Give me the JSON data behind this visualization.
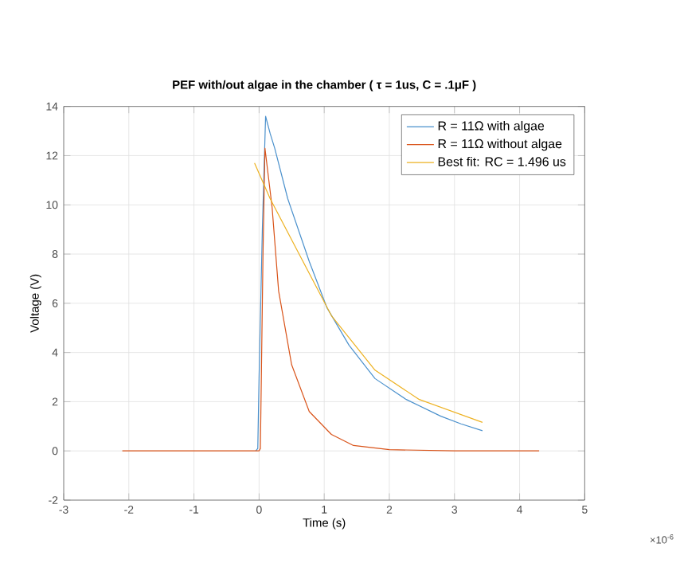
{
  "chart_data": {
    "type": "line",
    "title": "PEF with/out algae in the chamber ( τ = 1us, C = .1μF )",
    "xlabel": "Time (s)",
    "ylabel": "Voltage (V)",
    "annotations": [
      "×10$^{-6}$"
    ],
    "xlim": [
      -3,
      5
    ],
    "xticks": [
      -3,
      -2,
      -1,
      0,
      1,
      2,
      3,
      4,
      5
    ],
    "ylim": [
      -2,
      14
    ],
    "yticks": [
      -2,
      0,
      2,
      4,
      6,
      8,
      10,
      12,
      14
    ],
    "grid": true,
    "legend": "top right",
    "marker": "none",
    "line_style": "solid",
    "series": [
      {
        "name": "R = 11Ω with algae",
        "color": "#4a90cc",
        "x": [
          -0.05,
          -0.02,
          0.0,
          0.05,
          0.1,
          0.17,
          0.24,
          0.44,
          0.77,
          1.04,
          1.38,
          1.78,
          2.26,
          2.79,
          3.1,
          3.43
        ],
        "values": [
          0,
          0.1,
          3,
          9,
          13.6,
          12.9,
          12.3,
          10.25,
          7.7,
          5.83,
          4.3,
          2.94,
          2.09,
          1.41,
          1.1,
          0.82
        ]
      },
      {
        "name": "R = 11Ω without algae",
        "color": "#d95319",
        "x": [
          -2.1,
          -1,
          0,
          0.02,
          0.06,
          0.09,
          0.2,
          0.3,
          0.5,
          0.77,
          1.11,
          1.45,
          2,
          3,
          4.3
        ],
        "values": [
          0,
          0,
          0,
          0.1,
          8,
          12.3,
          9.9,
          6.5,
          3.5,
          1.6,
          0.67,
          0.22,
          0.05,
          0,
          0
        ]
      },
      {
        "name": "Best fit: RC = 1.496  us",
        "color": "#edb120",
        "x": [
          -0.07,
          0.17,
          0.64,
          1.11,
          1.78,
          2.46,
          3.43
        ],
        "values": [
          11.7,
          10.25,
          7.87,
          5.5,
          3.28,
          2.09,
          1.16
        ]
      }
    ]
  }
}
